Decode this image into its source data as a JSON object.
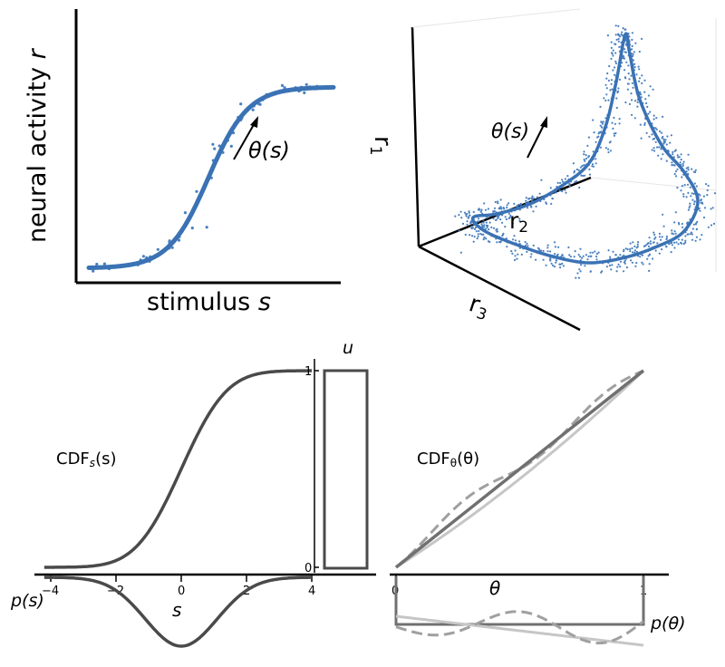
{
  "panel_a": {
    "ylabel_main": "neural activity ",
    "ylabel_var": "r",
    "xlabel_main": "stimulus ",
    "xlabel_var": "s",
    "arrow_label": "θ(s)",
    "curve_color": "#3a72b4",
    "point_color": "#4a80c0"
  },
  "panel_b": {
    "axis_r1": "r",
    "axis_r1_sub": "1",
    "axis_r2": "r",
    "axis_r2_sub": "2",
    "axis_r3": "r",
    "axis_r3_sub": "3",
    "arrow_label": "θ(s)",
    "curve_color": "#3a72b4",
    "point_color": "#4a80c0"
  },
  "panel_c": {
    "cdf_s_label_main": "CDF",
    "cdf_s_label_sub": "s",
    "cdf_s_label_arg": "(s)",
    "u_label": "u",
    "u_tick_1": "1",
    "u_tick_0": "0",
    "s_axis_label": "s",
    "ps_label": "p(s)",
    "s_ticks": [
      "−4",
      "−2",
      "0",
      "2",
      "4"
    ],
    "line_color": "#4a4a4a"
  },
  "panel_d": {
    "cdf_theta_label_main": "CDF",
    "cdf_theta_label_sub": "θ",
    "cdf_theta_label_arg": "(θ)",
    "theta_axis_label": "θ",
    "ptheta_label": "p(θ)",
    "theta_ticks": [
      "0",
      "1"
    ],
    "line_color_dark": "#707070",
    "line_color_light": "#c6c6c6",
    "line_color_dashed": "#a0a0a0"
  }
}
